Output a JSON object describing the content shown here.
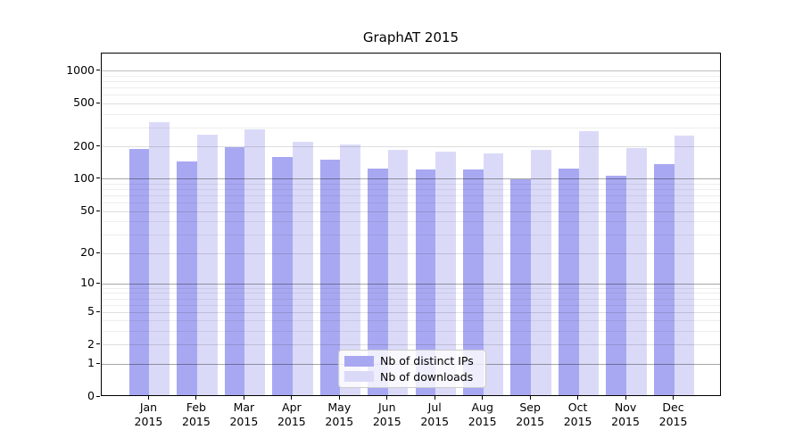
{
  "title": "GraphAT 2015",
  "colors": {
    "bar_distinct_ips": "#a8a8f2",
    "bar_downloads": "#dadaf8",
    "grid_major": "rgba(0,0,0,0.35)",
    "grid_top": "rgba(0,0,0,0.25)",
    "grid_medium": "rgba(0,0,0,0.13)",
    "grid_minor": "rgba(0,0,0,0.07)",
    "axis": "#000000",
    "legend_border": "#cccccc"
  },
  "chart_data": {
    "type": "bar",
    "title": "GraphAT 2015",
    "categories": [
      "Jan",
      "Feb",
      "Mar",
      "Apr",
      "May",
      "Jun",
      "Jul",
      "Aug",
      "Sep",
      "Oct",
      "Nov",
      "Dec"
    ],
    "year": "2015",
    "series": [
      {
        "name": "Nb of distinct IPs",
        "color": "#a8a8f2",
        "values": [
          184,
          142,
          190,
          156,
          146,
          120,
          118,
          119,
          97,
          122,
          104,
          132
        ]
      },
      {
        "name": "Nb of downloads",
        "color": "#dadaf8",
        "values": [
          325,
          250,
          277,
          213,
          204,
          179,
          173,
          167,
          181,
          268,
          187,
          246
        ]
      }
    ],
    "xlabel": "",
    "ylabel": "",
    "yscale": "log1p",
    "ylim": [
      0,
      1452
    ],
    "yticks": [
      1000,
      500,
      200,
      100,
      50,
      20,
      10,
      5,
      2,
      1,
      0
    ],
    "grid": true,
    "legend_position": "lower center"
  }
}
